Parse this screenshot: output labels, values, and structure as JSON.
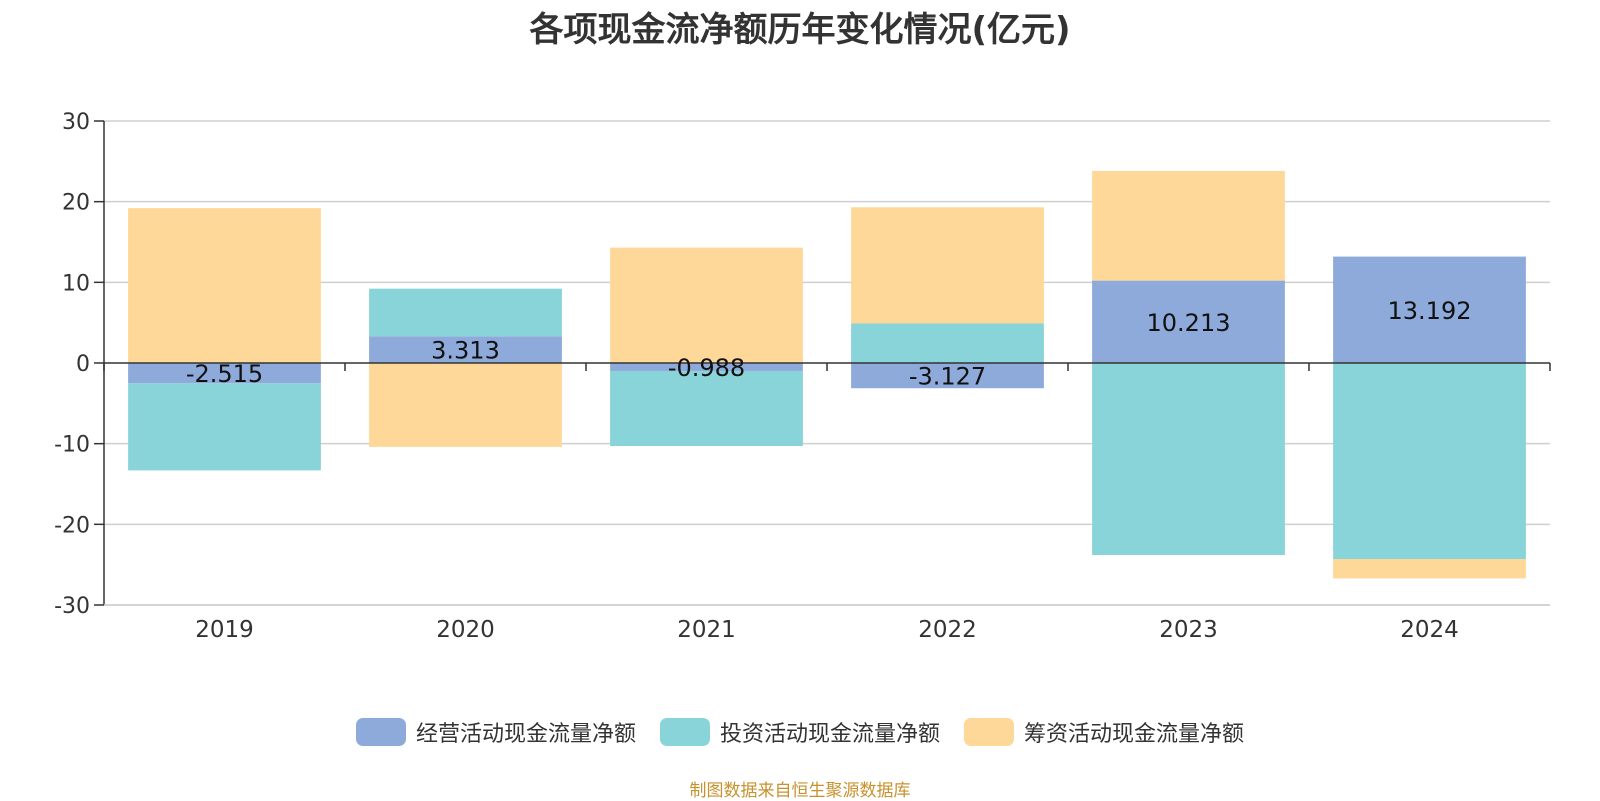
{
  "chart_data": {
    "type": "bar",
    "stacked": true,
    "title": "各项现金流净额历年变化情况(亿元)",
    "categories": [
      "2019",
      "2020",
      "2021",
      "2022",
      "2023",
      "2024"
    ],
    "ylim": [
      -30,
      30
    ],
    "yticks": [
      "30",
      "20",
      "10",
      "0",
      "-10",
      "-20",
      "-30"
    ],
    "grid": true,
    "legend_position": "bottom",
    "series": [
      {
        "name": "经营活动现金流量净额",
        "color": "#8eaadb",
        "values": [
          -2.515,
          3.313,
          -0.988,
          -3.127,
          10.213,
          13.192
        ],
        "labels": [
          "-2.515",
          "3.313",
          "-0.988",
          "-3.127",
          "10.213",
          "13.192"
        ]
      },
      {
        "name": "投资活动现金流量净额",
        "color": "#88d4d8",
        "values": [
          -10.8,
          5.9,
          -9.3,
          4.9,
          -23.8,
          -24.3
        ]
      },
      {
        "name": "筹资活动现金流量净额",
        "color": "#fed898",
        "values": [
          19.2,
          -10.4,
          14.3,
          14.4,
          13.6,
          -2.4
        ]
      }
    ]
  },
  "source_note": "制图数据来自恒生聚源数据库"
}
